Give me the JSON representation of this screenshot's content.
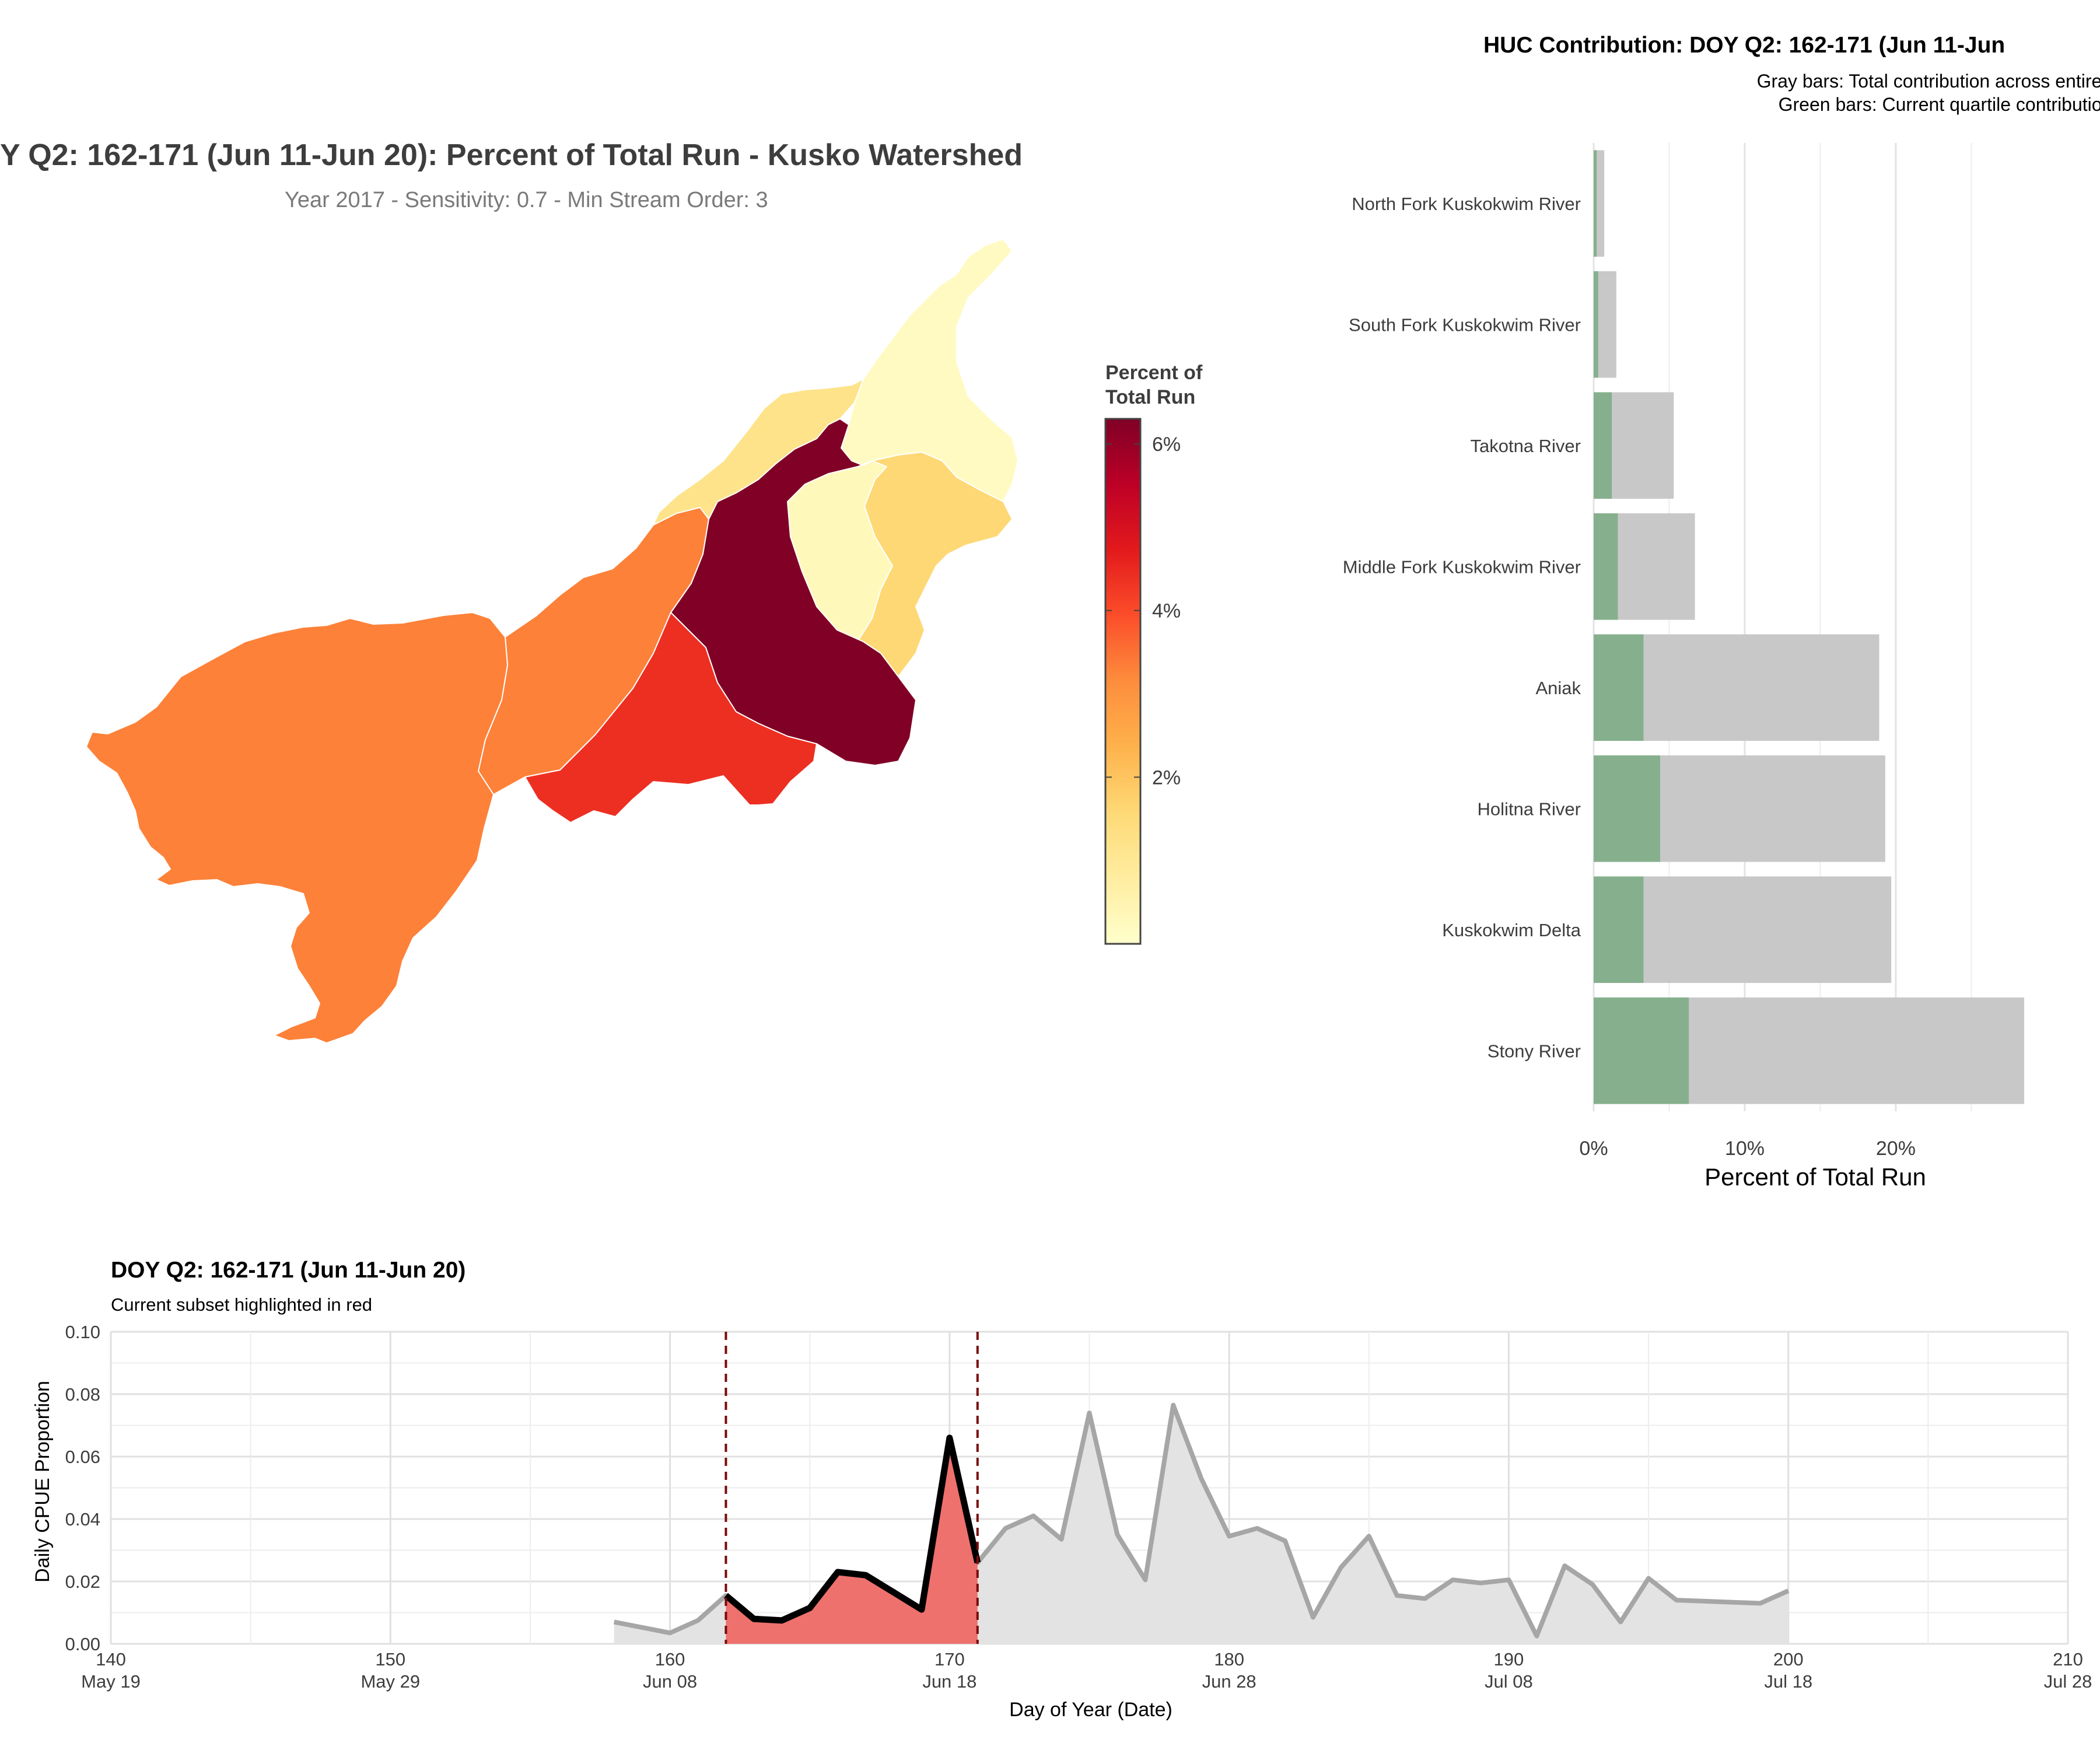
{
  "map_panel": {
    "title": "Y Q2: 162-171 (Jun 11-Jun 20): Percent of Total Run - Kusko Watershed",
    "subtitle": "Year 2017 - Sensitivity: 0.7 - Min Stream Order: 3",
    "legend_title_line1": "Percent of",
    "legend_title_line2": "Total Run",
    "legend_ticks": [
      "6%",
      "4%",
      "2%"
    ],
    "legend_colors": [
      "#ffffcc",
      "#ffeda0",
      "#fed976",
      "#feb24c",
      "#fd8d3c",
      "#fc4e2a",
      "#e31a1c",
      "#bd0026",
      "#800026"
    ]
  },
  "bar_panel": {
    "title": "HUC Contribution: DOY Q2: 162-171 (Jun 11-Jun",
    "subtitle_line1": "Gray bars: Total contribution across entire run",
    "subtitle_line2": "Green bars: Current quartile contribution",
    "xlabel": "Percent of Total Run",
    "x_tick_labels": [
      "0%",
      "10%",
      "20%"
    ]
  },
  "line_panel": {
    "title": "DOY Q2: 162-171 (Jun 11-Jun 20)",
    "subtitle": "Current subset highlighted in red",
    "xlabel": "Day of Year (Date)",
    "ylabel": "Daily CPUE Proportion",
    "y_tick_labels": [
      "0.00",
      "0.02",
      "0.04",
      "0.06",
      "0.08",
      "0.10"
    ],
    "x_tick_labels": [
      {
        "doy": "140",
        "date": "May 19"
      },
      {
        "doy": "150",
        "date": "May 29"
      },
      {
        "doy": "160",
        "date": "Jun 08"
      },
      {
        "doy": "170",
        "date": "Jun 18"
      },
      {
        "doy": "180",
        "date": "Jun 28"
      },
      {
        "doy": "190",
        "date": "Jul 08"
      },
      {
        "doy": "200",
        "date": "Jul 18"
      },
      {
        "doy": "210",
        "date": "Jul 28"
      }
    ]
  },
  "chart_data": [
    {
      "type": "choropleth",
      "title": "Y Q2: 162-171 (Jun 11-Jun 20): Percent of Total Run - Kusko Watershed",
      "legend_title": "Percent of Total Run",
      "color_scale_range": [
        0,
        6.3
      ],
      "regions": [
        {
          "name": "North Fork Kuskokwim River",
          "value": 0.2
        },
        {
          "name": "South Fork Kuskokwim River",
          "value": 0.3
        },
        {
          "name": "Takotna River",
          "value": 1.2
        },
        {
          "name": "Middle Fork Kuskokwim River",
          "value": 1.6
        },
        {
          "name": "Aniak",
          "value": 3.3
        },
        {
          "name": "Holitna River",
          "value": 4.4
        },
        {
          "name": "Kuskokwim Delta",
          "value": 3.3
        },
        {
          "name": "Stony River",
          "value": 6.3
        }
      ]
    },
    {
      "type": "bar",
      "orientation": "horizontal",
      "title": "HUC Contribution: DOY Q2: 162-171 (Jun 11-Jun",
      "categories": [
        "North Fork Kuskokwim River",
        "South Fork Kuskokwim River",
        "Takotna River",
        "Middle Fork Kuskokwim River",
        "Aniak",
        "Holitna River",
        "Kuskokwim Delta",
        "Stony River"
      ],
      "series": [
        {
          "name": "Total contribution across entire run",
          "color": "#c8c8c8",
          "values": [
            0.7,
            1.5,
            5.3,
            6.7,
            18.9,
            19.3,
            19.7,
            28.5
          ]
        },
        {
          "name": "Current quartile contribution",
          "color": "#86b08d",
          "values": [
            0.2,
            0.3,
            1.2,
            1.6,
            3.3,
            4.4,
            3.3,
            6.3
          ]
        }
      ],
      "xlabel": "Percent of Total Run",
      "xlim": [
        0,
        29
      ]
    },
    {
      "type": "area",
      "title": "DOY Q2: 162-171 (Jun 11-Jun 20)",
      "subtitle": "Current subset highlighted in red",
      "xlabel": "Day of Year (Date)",
      "ylabel": "Daily CPUE Proportion",
      "xlim": [
        140,
        210
      ],
      "ylim": [
        0,
        0.1
      ],
      "highlight_range": [
        162,
        171
      ],
      "x": [
        158,
        160,
        161,
        162,
        163,
        164,
        165,
        166,
        167,
        168,
        169,
        170,
        171,
        172,
        173,
        174,
        175,
        176,
        177,
        178,
        179,
        180,
        181,
        182,
        183,
        184,
        185,
        186,
        187,
        188,
        189,
        190,
        191,
        192,
        193,
        194,
        195,
        196,
        199,
        200
      ],
      "y": [
        0.007,
        0.0035,
        0.0075,
        0.0155,
        0.008,
        0.0075,
        0.0115,
        0.023,
        0.022,
        0.0165,
        0.011,
        0.066,
        0.026,
        0.037,
        0.041,
        0.0335,
        0.074,
        0.035,
        0.0205,
        0.0765,
        0.053,
        0.0345,
        0.037,
        0.033,
        0.0085,
        0.0245,
        0.0345,
        0.0155,
        0.0145,
        0.0205,
        0.0195,
        0.0205,
        0.0025,
        0.025,
        0.019,
        0.007,
        0.021,
        0.014,
        0.013,
        0.017
      ]
    }
  ]
}
